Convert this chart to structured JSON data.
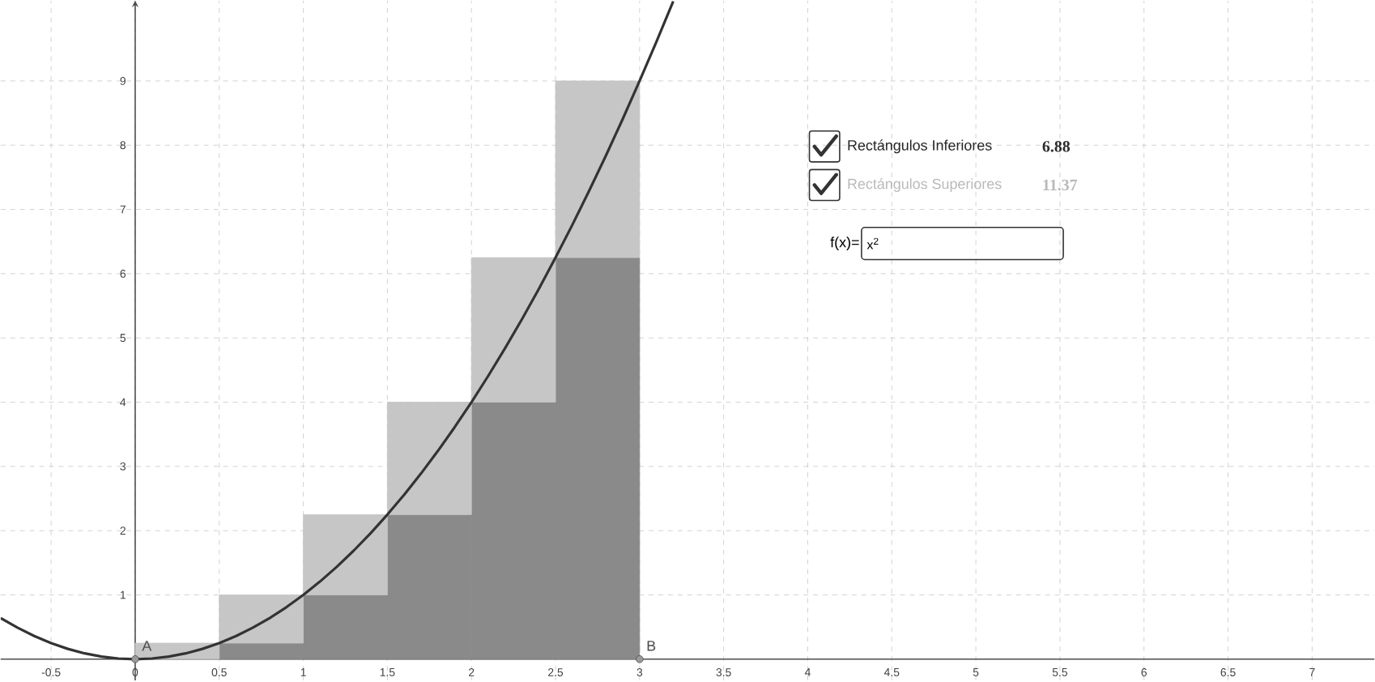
{
  "chart_data": {
    "type": "bar",
    "xlim": [
      -0.8,
      7.37
    ],
    "ylim": [
      -0.33,
      10.25
    ],
    "xticks": [
      -0.5,
      0,
      0.5,
      1,
      1.5,
      2,
      2.5,
      3,
      3.5,
      4,
      4.5,
      5,
      5.5,
      6,
      6.5,
      7
    ],
    "yticks": [
      1,
      2,
      3,
      4,
      5,
      6,
      7,
      8,
      9
    ],
    "grid": true,
    "stacked": true,
    "series": [
      {
        "color": "#8a8a8a",
        "x": [
          0.25,
          0.75,
          1.25,
          1.75,
          2.25,
          2.75
        ],
        "values": [
          0,
          0.25,
          1,
          2.25,
          4,
          6.25
        ]
      },
      {
        "color": "#c6c6c6",
        "x": [
          0.25,
          0.75,
          1.25,
          1.75,
          2.25,
          2.75
        ],
        "values": [
          0.25,
          0.75,
          1.25,
          1.75,
          2.25,
          2.75
        ]
      },
      {
        "type": "scatter",
        "color": "#9a9a9a",
        "x": [
          0,
          3
        ],
        "values": [
          0,
          0
        ]
      },
      {
        "type": "line",
        "color": "#333333",
        "x": [
          -0.8,
          -0.7,
          -0.6,
          -0.5,
          -0.4,
          -0.3,
          -0.2,
          -0.1,
          0,
          0.1,
          0.2,
          0.3,
          0.4,
          0.5,
          0.6,
          0.7,
          0.8,
          0.9,
          1,
          1.1,
          1.2,
          1.3,
          1.4,
          1.5,
          1.6,
          1.7,
          1.8,
          1.9,
          2,
          2.1,
          2.2,
          2.3,
          2.4,
          2.5,
          2.6,
          2.7,
          2.8,
          2.9,
          3,
          3.1,
          3.2
        ],
        "values": [
          0.64,
          0.49,
          0.36,
          0.25,
          0.16,
          0.09,
          0.04,
          0.01,
          0,
          0.01,
          0.04,
          0.09,
          0.16,
          0.25,
          0.36,
          0.49,
          0.64,
          0.81,
          1,
          1.21,
          1.44,
          1.69,
          1.96,
          2.25,
          2.56,
          2.89,
          3.24,
          3.61,
          4,
          4.41,
          4.84,
          5.29,
          5.76,
          6.25,
          6.76,
          7.29,
          7.84,
          8.41,
          9,
          9.61,
          10.24
        ]
      }
    ],
    "annotations": [
      {
        "text": "A",
        "x": 0,
        "y": 0
      },
      {
        "text": "B",
        "x": 3,
        "y": 0
      },
      "Rectángulos Inferiores",
      "6.88",
      "Rectángulos Superiores",
      "11.37",
      "f(x)=",
      "x$^{2}$"
    ]
  }
}
